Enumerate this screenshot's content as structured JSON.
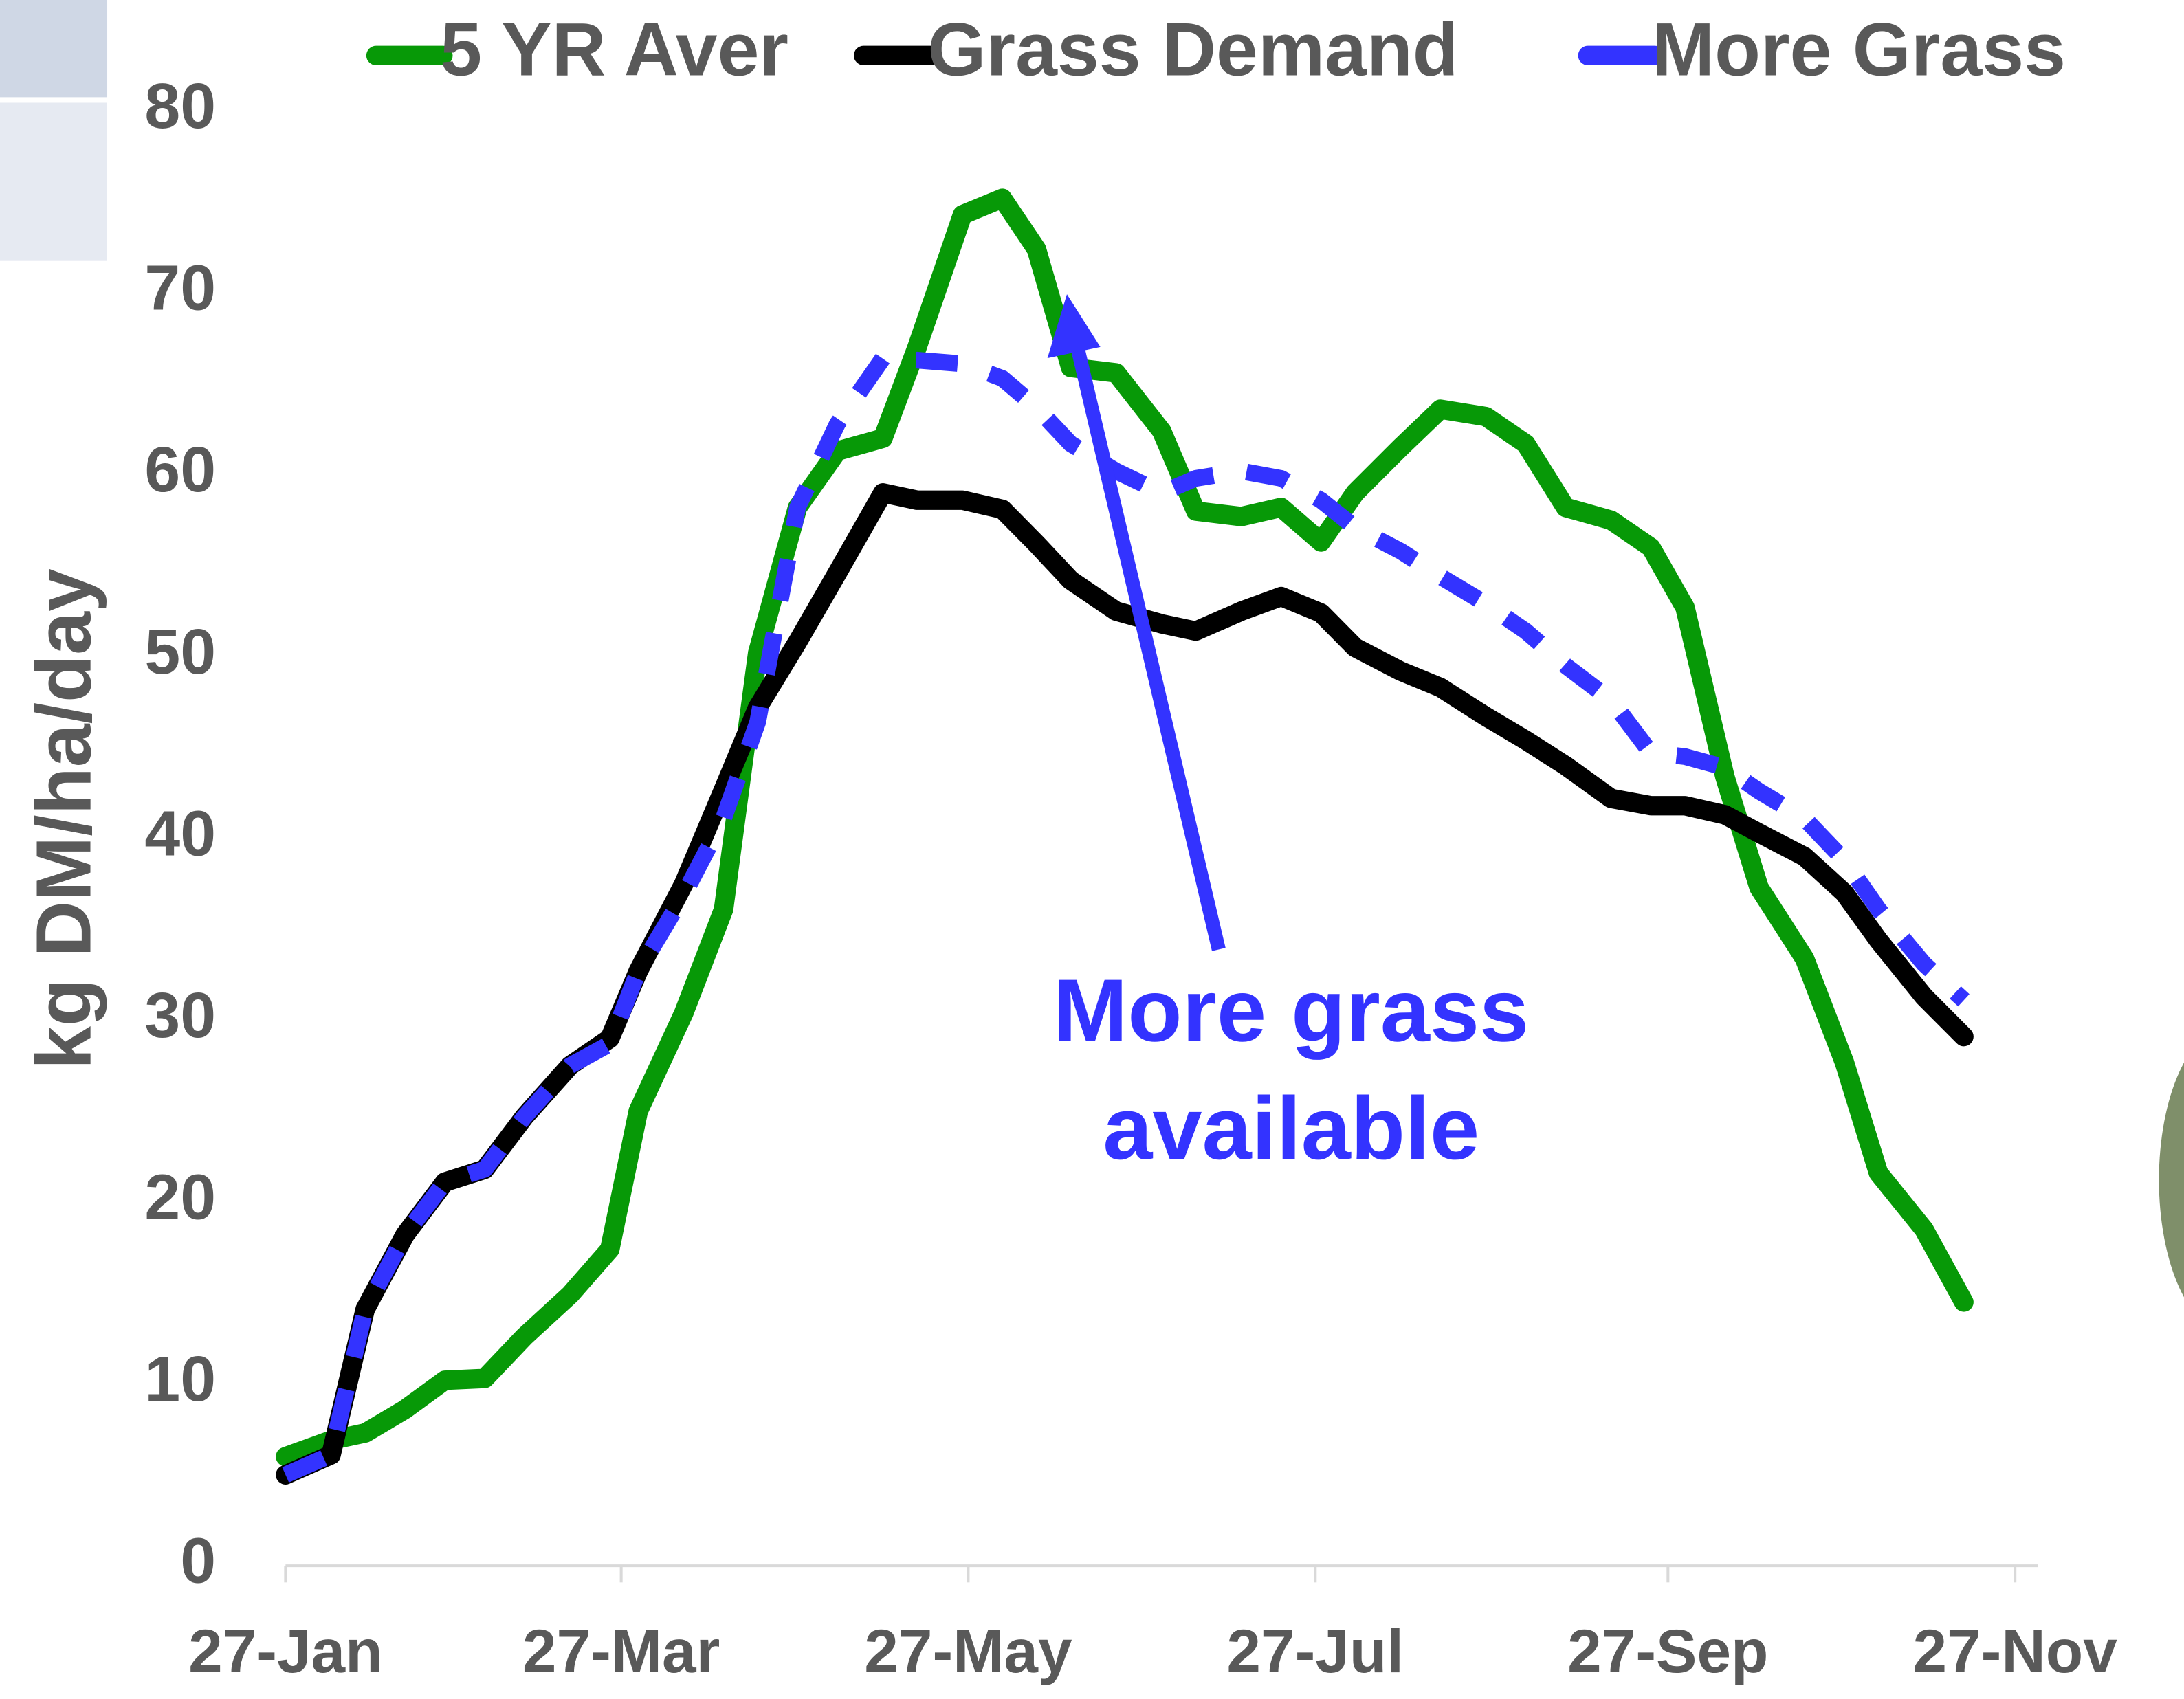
{
  "chart_data": {
    "type": "line",
    "y_label": "kg DM/ha/day",
    "annotation": [
      "More grass",
      "available"
    ],
    "x": [
      0,
      8,
      14,
      21,
      28,
      35,
      42,
      50,
      57,
      62,
      70,
      77,
      83,
      90,
      97,
      105,
      111,
      119,
      126,
      132,
      138,
      146,
      154,
      160,
      168,
      175,
      182,
      188,
      196,
      203,
      211,
      218,
      225,
      233,
      240,
      246,
      253,
      259,
      267,
      274,
      280,
      288,
      295
    ],
    "series": [
      {
        "name": "5 YR Aver",
        "color": "#079907",
        "dashed": false,
        "values": [
          6,
          6.9,
          7.3,
          8.6,
          10.2,
          10.3,
          12.6,
          14.9,
          17.4,
          25,
          30.4,
          36.1,
          50.2,
          58.2,
          61.3,
          62,
          67,
          74.3,
          75.2,
          72.4,
          65.9,
          65.6,
          62.4,
          58,
          57.7,
          58.2,
          56.3,
          59,
          61.5,
          63.6,
          63.2,
          61.7,
          58.2,
          57.5,
          56,
          52.7,
          43.4,
          37.3,
          33.4,
          27.7,
          21.6,
          18.5,
          14.5
        ]
      },
      {
        "name": "Grass Demand",
        "color": "#000000",
        "dashed": false,
        "values": [
          5,
          6.1,
          14.1,
          18.2,
          21.1,
          21.8,
          24.7,
          27.5,
          29,
          32.7,
          37.5,
          42.7,
          47.2,
          50.8,
          54.6,
          59,
          58.6,
          58.6,
          58.1,
          56.2,
          54.2,
          52.5,
          51.8,
          51.4,
          52.5,
          53.3,
          52.4,
          50.5,
          49.2,
          48.3,
          46.7,
          45.4,
          44,
          42.2,
          41.8,
          41.8,
          41.3,
          40.3,
          39,
          37,
          34.4,
          31.3,
          29.1
        ]
      },
      {
        "name": "More Grass",
        "color": "#3333ff",
        "dashed": true,
        "values": [
          5,
          6.1,
          14.1,
          18.2,
          21.1,
          21.8,
          24.7,
          27.5,
          28.7,
          32.7,
          36.9,
          41.1,
          46.4,
          58.2,
          62.8,
          66.4,
          66.3,
          66.1,
          65.3,
          63.7,
          61.7,
          60.2,
          59,
          59.8,
          60.2,
          59.8,
          58.6,
          57.1,
          55.8,
          54.4,
          52.9,
          51.4,
          49.5,
          47.6,
          44.7,
          44.5,
          43.9,
          42.6,
          41.1,
          38.8,
          36.1,
          33.1,
          31.1
        ]
      }
    ],
    "xlim": [
      0,
      308
    ],
    "xticks": [
      {
        "value": 0,
        "label": "27-Jan"
      },
      {
        "value": 59,
        "label": "27-Mar"
      },
      {
        "value": 120,
        "label": "27-May"
      },
      {
        "value": 181,
        "label": "27-Jul"
      },
      {
        "value": 243,
        "label": "27-Sep"
      },
      {
        "value": 304,
        "label": "27-Nov"
      }
    ],
    "ylim": [
      0,
      80
    ],
    "yticks": [
      0,
      10,
      20,
      30,
      40,
      50,
      60,
      70,
      80
    ],
    "grid": false
  }
}
